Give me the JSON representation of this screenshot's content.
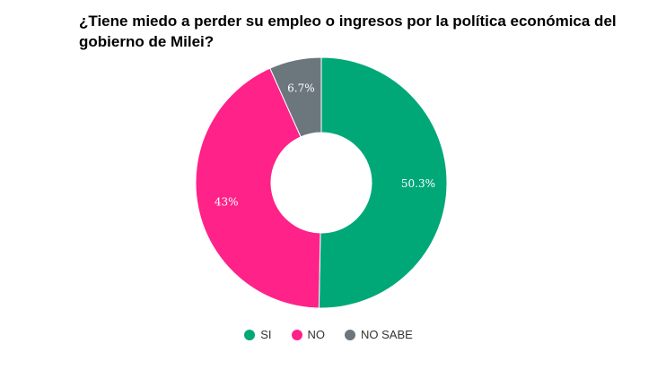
{
  "chart_data": {
    "type": "pie",
    "title": "¿Tiene miedo a perder su empleo o ingresos por la política económica del gobierno de Milei?",
    "categories": [
      "SI",
      "NO",
      "NO SABE"
    ],
    "values": [
      50.3,
      43,
      6.7
    ],
    "data_labels": [
      "50.3%",
      "43%",
      "6.7%"
    ],
    "colors": [
      "#00a878",
      "#ff2288",
      "#6b777d"
    ],
    "legend_position": "bottom",
    "donut": true
  }
}
